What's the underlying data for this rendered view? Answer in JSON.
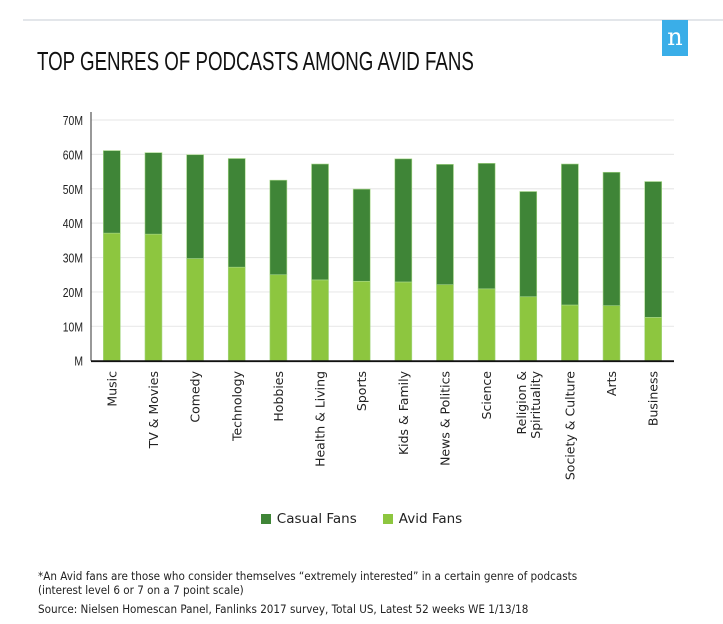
{
  "header": {
    "title": "TOP GENRES OF PODCASTS AMONG AVID FANS",
    "logo_letter": "n",
    "logo_color": "#3aaee8"
  },
  "chart_data": {
    "type": "bar",
    "stacked": true,
    "title": "TOP GENRES OF PODCASTS AMONG AVID FANS",
    "xlabel": "",
    "ylabel": "",
    "ylim": [
      0,
      70
    ],
    "y_unit": "M",
    "yticks": [
      0,
      10,
      20,
      30,
      40,
      50,
      60,
      70
    ],
    "ytick_labels": [
      "M",
      "10M",
      "20M",
      "30M",
      "40M",
      "50M",
      "60M",
      "70M"
    ],
    "grid": true,
    "categories": [
      "Music",
      "TV & Movies",
      "Comedy",
      "Technology",
      "Hobbies",
      "Health & Living",
      "Sports",
      "Kids & Family",
      "News & Politics",
      "Science",
      "Religion & Spirituality",
      "Society & Culture",
      "Arts",
      "Business"
    ],
    "category_lines": [
      [
        "Music"
      ],
      [
        "TV & Movies"
      ],
      [
        "Comedy"
      ],
      [
        "Technology"
      ],
      [
        "Hobbies"
      ],
      [
        "Health & Living"
      ],
      [
        "Sports"
      ],
      [
        "Kids & Family"
      ],
      [
        "News & Politics"
      ],
      [
        "Science"
      ],
      [
        "Religion &",
        "Spirituality"
      ],
      [
        "Society & Culture"
      ],
      [
        "Arts"
      ],
      [
        "Business"
      ]
    ],
    "series": [
      {
        "name": "Avid Fans",
        "color": "#8dc63f",
        "values": [
          37.1,
          36.8,
          29.7,
          27.2,
          25.0,
          23.5,
          23.1,
          22.9,
          22.1,
          20.9,
          18.6,
          16.2,
          16.0,
          12.6
        ]
      },
      {
        "name": "Casual Fans",
        "color": "#3f8537",
        "values": [
          24.0,
          23.7,
          30.2,
          31.6,
          27.5,
          33.7,
          26.8,
          35.8,
          35.0,
          36.5,
          30.6,
          41.0,
          38.8,
          39.5
        ]
      }
    ],
    "totals": [
      61.1,
      60.5,
      59.9,
      58.8,
      52.5,
      57.2,
      49.9,
      58.7,
      57.1,
      57.4,
      49.2,
      57.2,
      54.8,
      52.1
    ],
    "legend": {
      "position": "bottom",
      "entries": [
        {
          "label": "Casual Fans",
          "color": "#3f8537"
        },
        {
          "label": "Avid Fans",
          "color": "#8dc63f"
        }
      ]
    }
  },
  "footer": {
    "note_line1": "*An Avid fans are those who consider themselves “extremely interested” in a certain genre of podcasts",
    "note_line2": "(interest level 6 or 7 on a 7 point scale)",
    "source": "Source: Nielsen Homescan Panel, Fanlinks 2017 survey, Total US, Latest 52 weeks WE 1/13/18"
  }
}
